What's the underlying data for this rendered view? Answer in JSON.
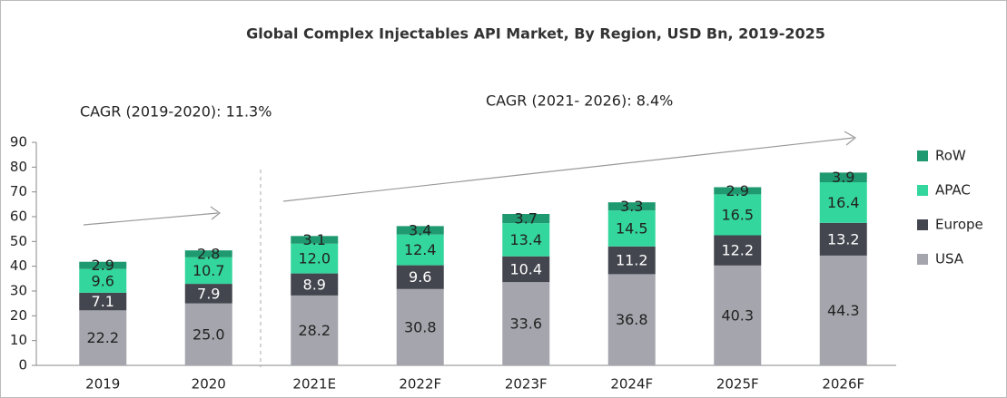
{
  "chart_data": {
    "type": "stacked_bar",
    "title": "Global Complex Injectables API Market, By Region, USD  Bn, 2019-2025",
    "annotations": [
      "CAGR (2019-2020): 11.3%",
      "CAGR (2021- 2026): 8.4%"
    ],
    "categories": [
      "2019",
      "2020",
      "2021E",
      "2022F",
      "2023F",
      "2024F",
      "2025F",
      "2026F"
    ],
    "series": [
      {
        "name": "USA",
        "color": "#a5a5ad",
        "values": [
          22.2,
          25.0,
          28.2,
          30.8,
          33.6,
          36.8,
          40.3,
          44.3
        ],
        "value_labels": [
          "22.2",
          "25.0",
          "28.2",
          "30.8",
          "33.6",
          "36.8",
          "40.3",
          "44.3"
        ]
      },
      {
        "name": "Europe",
        "color": "#44464f",
        "values": [
          7.1,
          7.9,
          8.9,
          9.6,
          10.4,
          11.2,
          12.2,
          13.2
        ],
        "value_labels": [
          "7.1",
          "7.9",
          "8.9",
          "9.6",
          "10.4",
          "11.2",
          "12.2",
          "13.2"
        ]
      },
      {
        "name": "APAC",
        "color": "#33d69d",
        "values": [
          9.6,
          10.7,
          12.0,
          12.4,
          13.4,
          14.5,
          16.5,
          16.4
        ],
        "value_labels": [
          "9.6",
          "10.7",
          "12.0",
          "12.4",
          "13.4",
          "14.5",
          "16.5",
          "16.4"
        ]
      },
      {
        "name": "RoW",
        "color": "#1f9a70",
        "values": [
          2.9,
          2.8,
          3.1,
          3.4,
          3.7,
          3.3,
          2.9,
          3.9
        ],
        "value_labels": [
          "2.9",
          "2.8",
          "3.1",
          "3.4",
          "3.7",
          "3.3",
          "2.9",
          "3.9"
        ]
      }
    ],
    "ylim": [
      0,
      90
    ],
    "yticks": [
      0,
      10,
      20,
      30,
      40,
      50,
      60,
      70,
      80,
      90
    ],
    "grid": false,
    "legend": "right"
  }
}
